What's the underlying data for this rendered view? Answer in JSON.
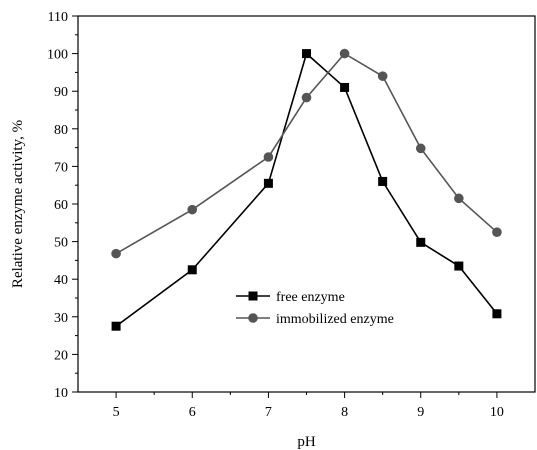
{
  "chart_data": {
    "type": "line",
    "title": "",
    "xlabel": "pH",
    "ylabel": "Relative enzyme activity, %",
    "xlim": [
      4.5,
      10.5
    ],
    "ylim": [
      10,
      110
    ],
    "x_ticks": [
      5,
      6,
      7,
      8,
      9,
      10
    ],
    "y_ticks": [
      10,
      20,
      30,
      40,
      50,
      60,
      70,
      80,
      90,
      100,
      110
    ],
    "x_tick_labels": [
      "5",
      "6",
      "7",
      "8",
      "9",
      "10"
    ],
    "y_tick_labels": [
      "10",
      "20",
      "30",
      "40",
      "50",
      "60",
      "70",
      "80",
      "90",
      "100",
      "110"
    ],
    "grid": false,
    "legend_position": "center",
    "series": [
      {
        "name": "free enzyme",
        "marker": "square",
        "color": "#000000",
        "x": [
          5,
          6,
          7,
          7.5,
          8,
          8.5,
          9,
          9.5,
          10
        ],
        "values": [
          27.5,
          42.5,
          65.5,
          100,
          91,
          66,
          49.8,
          43.5,
          30.8
        ]
      },
      {
        "name": "immobilized enzyme",
        "marker": "circle",
        "color": "#555555",
        "x": [
          5,
          6,
          7,
          7.5,
          8,
          8.5,
          9,
          9.5,
          10
        ],
        "values": [
          46.8,
          58.5,
          72.5,
          88.3,
          100,
          94,
          74.8,
          61.5,
          52.5
        ]
      }
    ]
  }
}
